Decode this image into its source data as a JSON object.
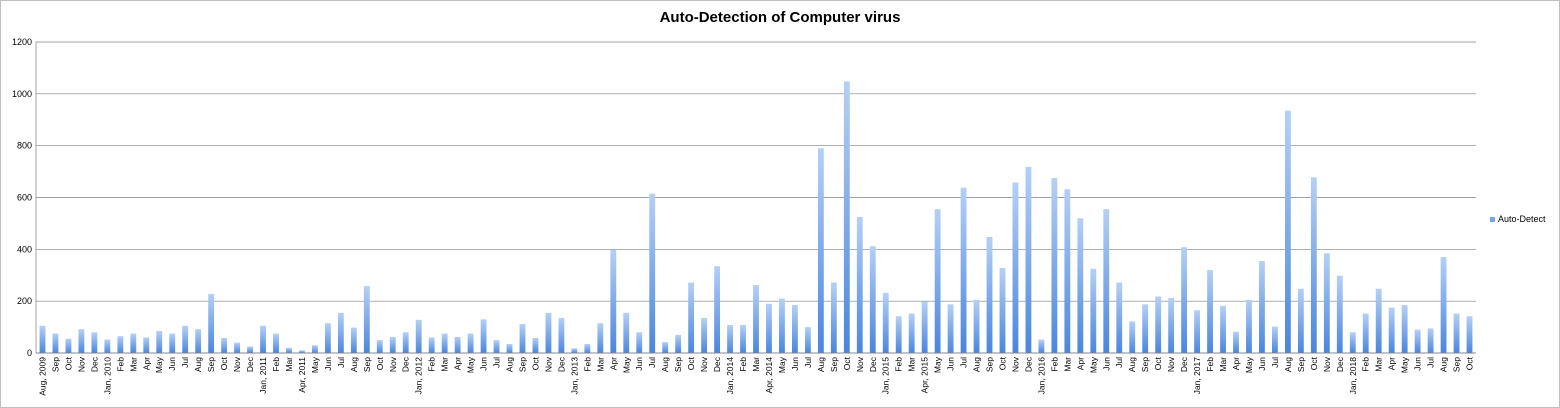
{
  "chart_data": {
    "type": "bar",
    "title": "Auto-Detection of Computer virus",
    "xlabel": "",
    "ylabel": "",
    "ylim": [
      0,
      1200
    ],
    "yticks": [
      0,
      200,
      400,
      600,
      800,
      1000,
      1200
    ],
    "grid": true,
    "legend_position": "right",
    "colors": {
      "bar_top": "#b5d0f5",
      "bar_bottom": "#4a86de",
      "grid": "#808080"
    },
    "categories": [
      "Aug, 2009",
      "Sep",
      "Oct",
      "Nov",
      "Dec",
      "Jan, 2010",
      "Feb",
      "Mar",
      "Apr",
      "May",
      "Jun",
      "Jul",
      "Aug",
      "Sep",
      "Oct",
      "Nov",
      "Dec",
      "Jan, 2011",
      "Feb",
      "Mar",
      "Apr, 2011",
      "May",
      "Jun",
      "Jul",
      "Aug",
      "Sep",
      "Oct",
      "Nov",
      "Dec",
      "Jan, 2012",
      "Feb",
      "Mar",
      "Apr",
      "May",
      "Jun",
      "Jul",
      "Aug",
      "Sep",
      "Oct",
      "Nov",
      "Dec",
      "Jan, 2013",
      "Feb",
      "Mar",
      "Apr",
      "May",
      "Jun",
      "Jul",
      "Aug",
      "Sep",
      "Oct",
      "Nov",
      "Dec",
      "Jan, 2014",
      "Feb",
      "Mar",
      "Apr, 2014",
      "May",
      "Jun",
      "Jul",
      "Aug",
      "Sep",
      "Oct",
      "Nov",
      "Dec",
      "Jan, 2015",
      "Feb",
      "Mar",
      "Apr, 2015",
      "May",
      "Jun",
      "Jul",
      "Aug",
      "Sep",
      "Oct",
      "Nov",
      "Dec",
      "Jan, 2016",
      "Feb",
      "Mar",
      "Apr",
      "May",
      "Jun",
      "Jul",
      "Aug",
      "Sep",
      "Oct",
      "Nov",
      "Dec",
      "Jan, 2017",
      "Feb",
      "Mar",
      "Apr",
      "May",
      "Jun",
      "Jul",
      "Aug",
      "Sep",
      "Oct",
      "Nov",
      "Dec",
      "Jan, 2018",
      "Feb",
      "Mar",
      "Apr",
      "May",
      "Jun",
      "Jul",
      "Aug",
      "Sep",
      "Oct"
    ],
    "series": [
      {
        "name": "Auto-Detect",
        "values": [
          105,
          75,
          55,
          92,
          80,
          52,
          65,
          75,
          60,
          85,
          75,
          105,
          92,
          228,
          58,
          40,
          25,
          105,
          75,
          20,
          10,
          30,
          115,
          155,
          98,
          258,
          50,
          62,
          80,
          128,
          60,
          75,
          62,
          75,
          130,
          50,
          35,
          112,
          58,
          155,
          135,
          18,
          35,
          115,
          400,
          155,
          80,
          615,
          42,
          70,
          272,
          135,
          335,
          108,
          108,
          262,
          190,
          210,
          185,
          100,
          790,
          272,
          1048,
          525,
          412,
          232,
          142,
          152,
          198,
          555,
          188,
          638,
          205,
          448,
          328,
          658,
          718,
          52,
          675,
          632,
          520,
          325,
          555,
          272,
          122,
          188,
          218,
          212,
          408,
          165,
          320,
          182,
          82,
          205,
          355,
          102,
          935,
          248,
          678,
          385,
          298,
          80,
          152,
          248,
          175,
          185,
          90,
          95,
          370,
          152,
          142
        ]
      }
    ]
  }
}
